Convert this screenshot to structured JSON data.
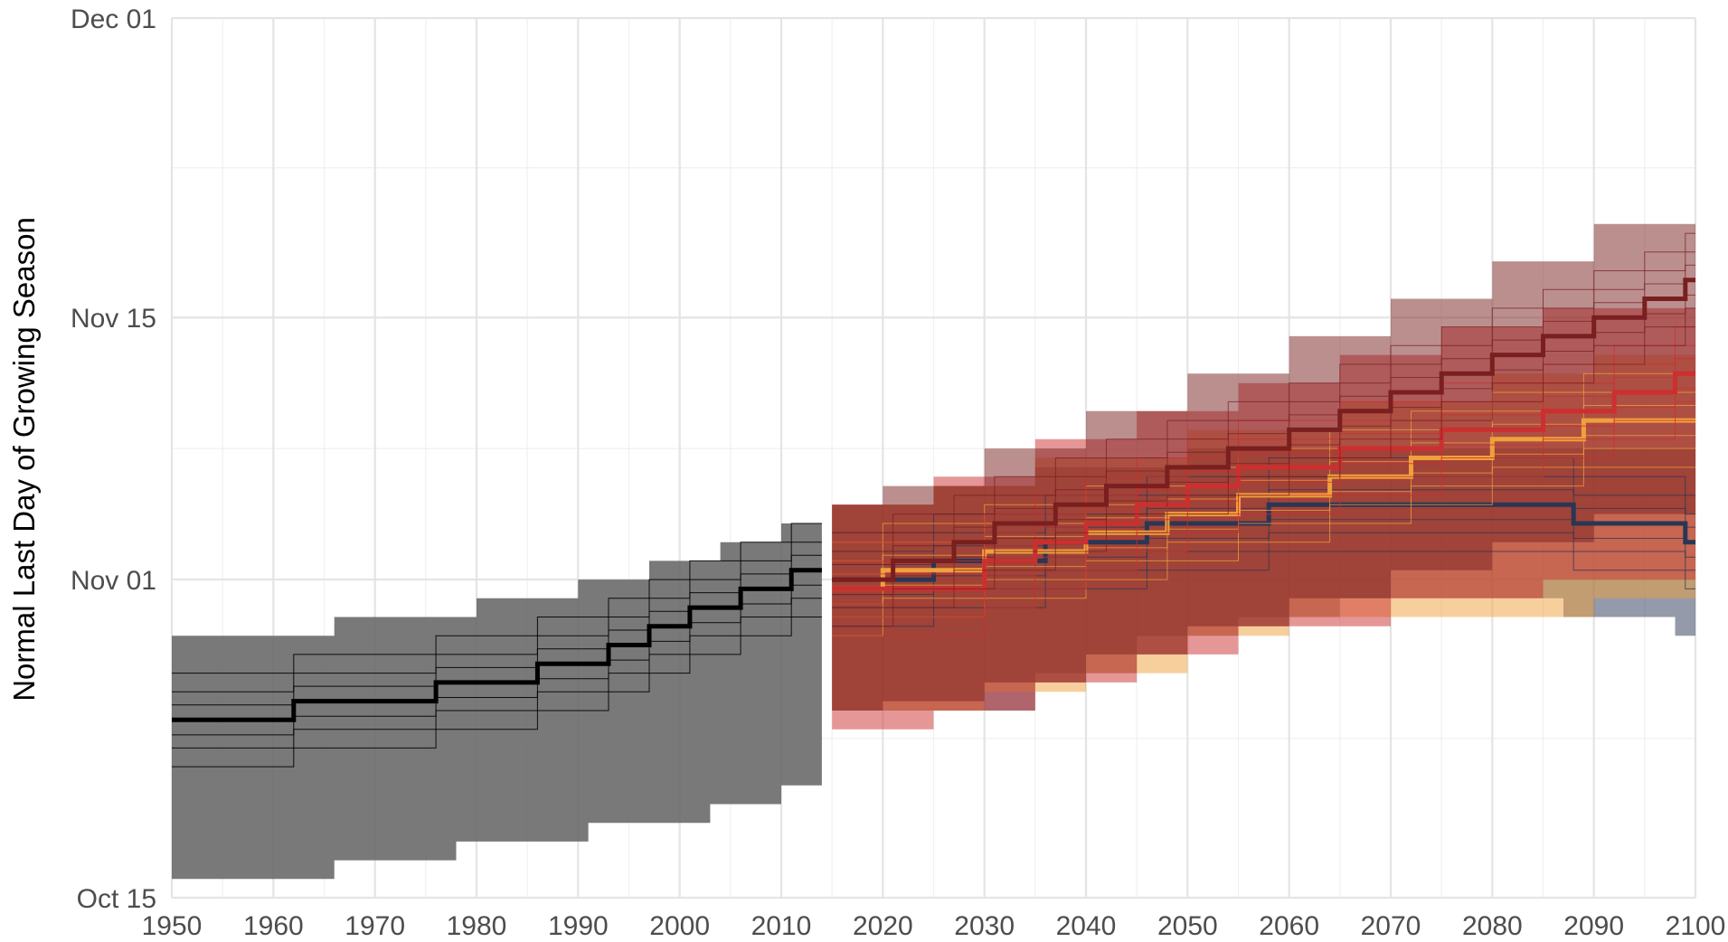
{
  "chart_data": {
    "type": "area",
    "title": "",
    "xlabel": "",
    "ylabel": "Normal Last Day of Growing Season",
    "x_ticks": [
      1950,
      1960,
      1970,
      1980,
      1990,
      2000,
      2010,
      2020,
      2030,
      2040,
      2050,
      2060,
      2070,
      2080,
      2090,
      2100
    ],
    "x_tick_labels": [
      "1950",
      "1960",
      "1970",
      "1980",
      "1990",
      "2000",
      "2010",
      "2020",
      "2030",
      "2040",
      "2050",
      "2060",
      "2070",
      "2080",
      "2090",
      "2100"
    ],
    "xlim": [
      1950,
      2100
    ],
    "y_ticks": [
      "Oct 15",
      "Nov 01",
      "Nov 15",
      "Dec 01"
    ],
    "y_tick_day_of_year": [
      288,
      305,
      319,
      335
    ],
    "ylim_day_of_year": [
      288,
      335
    ],
    "grid": true,
    "legend": "none",
    "series": [
      {
        "color": "#666666",
        "points": [
          [
            1950,
            297.5
          ],
          [
            1962,
            298.5
          ],
          [
            1976,
            299.5
          ],
          [
            1986,
            300.5
          ],
          [
            1993,
            301.5
          ],
          [
            1997,
            302.5
          ],
          [
            2001,
            303.5
          ],
          [
            2006,
            304.5
          ],
          [
            2011,
            305.5
          ],
          [
            2014,
            305.5
          ]
        ],
        "band_low": [
          [
            1950,
            289.0
          ],
          [
            1966,
            290.0
          ],
          [
            1978,
            291.0
          ],
          [
            1991,
            292.0
          ],
          [
            2003,
            293.0
          ],
          [
            2010,
            294.0
          ],
          [
            2014,
            294.0
          ]
        ],
        "band_high": [
          [
            1950,
            302.0
          ],
          [
            1966,
            303.0
          ],
          [
            1980,
            304.0
          ],
          [
            1990,
            305.0
          ],
          [
            1997,
            306.0
          ],
          [
            2004,
            307.0
          ],
          [
            2010,
            308.0
          ],
          [
            2014,
            308.0
          ]
        ]
      },
      {
        "color": "#2a3654",
        "points": [
          [
            2015,
            305.0
          ],
          [
            2025,
            306.0
          ],
          [
            2036,
            307.0
          ],
          [
            2046,
            308.0
          ],
          [
            2058,
            309.0
          ],
          [
            2088,
            308.0
          ],
          [
            2099,
            307.0
          ],
          [
            2100,
            307.0
          ]
        ],
        "band_low": [
          [
            2015,
            298.0
          ],
          [
            2035,
            300.0
          ],
          [
            2045,
            302.0
          ],
          [
            2055,
            303.0
          ],
          [
            2065,
            304.0
          ],
          [
            2087,
            303.0
          ],
          [
            2098,
            302.0
          ],
          [
            2100,
            302.0
          ]
        ],
        "band_high": [
          [
            2015,
            309.0
          ],
          [
            2025,
            310.0
          ],
          [
            2035,
            311.0
          ],
          [
            2050,
            312.0
          ],
          [
            2065,
            312.0
          ],
          [
            2100,
            312.0
          ]
        ]
      },
      {
        "color": "#f0a03c",
        "points": [
          [
            2015,
            304.5
          ],
          [
            2020,
            305.5
          ],
          [
            2030,
            306.5
          ],
          [
            2040,
            307.5
          ],
          [
            2048,
            308.5
          ],
          [
            2055,
            309.5
          ],
          [
            2064,
            310.5
          ],
          [
            2072,
            311.5
          ],
          [
            2080,
            312.5
          ],
          [
            2089,
            313.5
          ],
          [
            2100,
            313.5
          ]
        ],
        "band_low": [
          [
            2015,
            298.0
          ],
          [
            2030,
            299.0
          ],
          [
            2040,
            300.0
          ],
          [
            2050,
            302.0
          ],
          [
            2060,
            303.0
          ],
          [
            2090,
            304.0
          ],
          [
            2100,
            304.0
          ]
        ],
        "band_high": [
          [
            2015,
            309.0
          ],
          [
            2025,
            310.0
          ],
          [
            2035,
            311.5
          ],
          [
            2050,
            313.0
          ],
          [
            2065,
            314.5
          ],
          [
            2080,
            316.0
          ],
          [
            2090,
            317.0
          ],
          [
            2100,
            317.0
          ]
        ]
      },
      {
        "color": "#cc2f2f",
        "points": [
          [
            2015,
            304.5
          ],
          [
            2030,
            306.0
          ],
          [
            2035,
            307.0
          ],
          [
            2040,
            308.0
          ],
          [
            2045,
            309.0
          ],
          [
            2050,
            310.0
          ],
          [
            2055,
            311.0
          ],
          [
            2065,
            312.0
          ],
          [
            2075,
            313.0
          ],
          [
            2085,
            314.0
          ],
          [
            2092,
            315.0
          ],
          [
            2098,
            316.0
          ],
          [
            2100,
            316.0
          ]
        ],
        "band_low": [
          [
            2015,
            297.0
          ],
          [
            2025,
            298.0
          ],
          [
            2035,
            299.5
          ],
          [
            2045,
            301.0
          ],
          [
            2055,
            302.5
          ],
          [
            2070,
            304.0
          ],
          [
            2085,
            305.0
          ],
          [
            2100,
            306.0
          ]
        ],
        "band_high": [
          [
            2015,
            309.0
          ],
          [
            2025,
            310.5
          ],
          [
            2035,
            312.5
          ],
          [
            2045,
            314.0
          ],
          [
            2055,
            315.5
          ],
          [
            2065,
            317.0
          ],
          [
            2075,
            318.5
          ],
          [
            2085,
            319.5
          ],
          [
            2100,
            320.0
          ]
        ]
      },
      {
        "color": "#7a1f1f",
        "points": [
          [
            2015,
            305.0
          ],
          [
            2021,
            306.0
          ],
          [
            2027,
            307.0
          ],
          [
            2031,
            308.0
          ],
          [
            2037,
            309.0
          ],
          [
            2042,
            310.0
          ],
          [
            2048,
            311.0
          ],
          [
            2054,
            312.0
          ],
          [
            2060,
            313.0
          ],
          [
            2065,
            314.0
          ],
          [
            2070,
            315.0
          ],
          [
            2075,
            316.0
          ],
          [
            2080,
            317.0
          ],
          [
            2085,
            318.0
          ],
          [
            2090,
            319.0
          ],
          [
            2095,
            320.0
          ],
          [
            2099,
            321.0
          ],
          [
            2100,
            321.0
          ]
        ],
        "band_low": [
          [
            2015,
            298.0
          ],
          [
            2020,
            298.5
          ],
          [
            2030,
            299.5
          ],
          [
            2040,
            301.0
          ],
          [
            2050,
            302.5
          ],
          [
            2060,
            304.0
          ],
          [
            2070,
            305.5
          ],
          [
            2080,
            307.0
          ],
          [
            2090,
            308.5
          ],
          [
            2100,
            310.0
          ]
        ],
        "band_high": [
          [
            2015,
            309.0
          ],
          [
            2020,
            310.0
          ],
          [
            2030,
            312.0
          ],
          [
            2040,
            314.0
          ],
          [
            2050,
            316.0
          ],
          [
            2060,
            318.0
          ],
          [
            2070,
            320.0
          ],
          [
            2080,
            322.0
          ],
          [
            2090,
            324.0
          ],
          [
            2100,
            326.0
          ]
        ]
      }
    ]
  }
}
